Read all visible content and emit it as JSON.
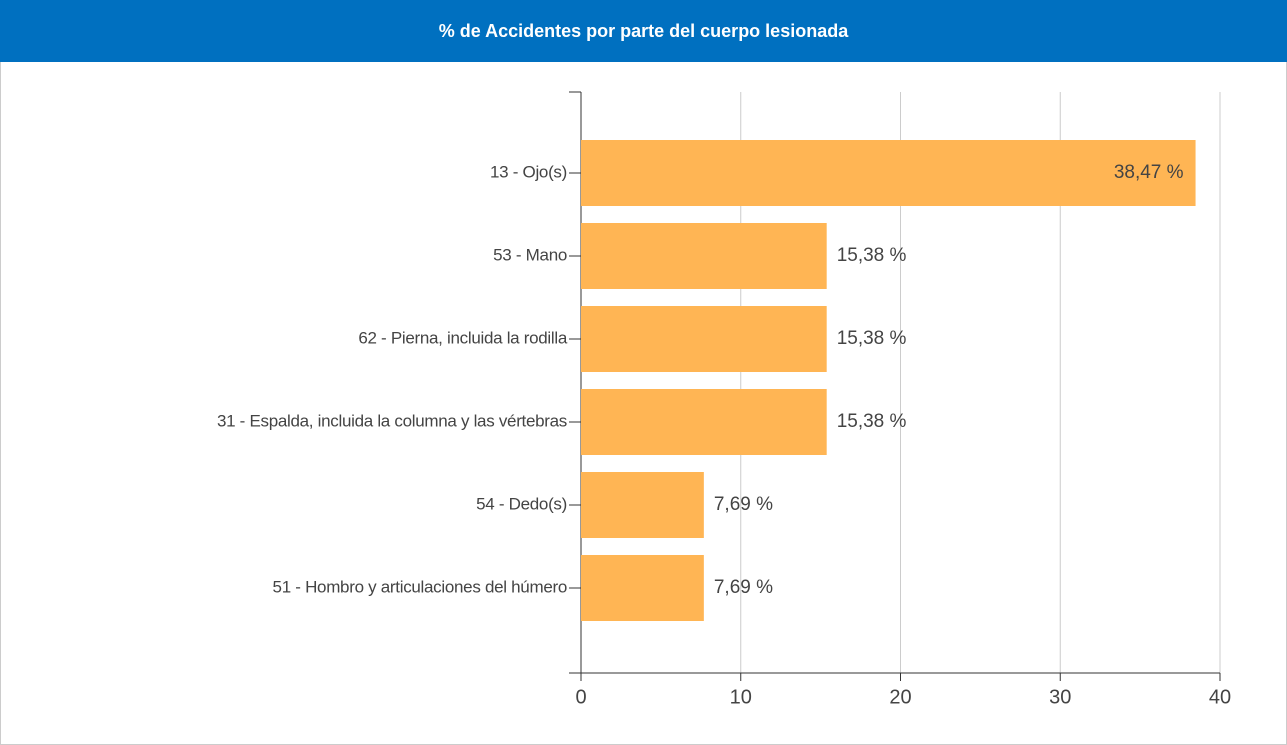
{
  "chart_data": {
    "type": "bar",
    "orientation": "horizontal",
    "title": "% de Accidentes por parte del cuerpo lesionada",
    "categories": [
      "13 - Ojo(s)",
      "53 - Mano",
      "62 - Pierna, incluida la rodilla",
      "31 - Espalda, incluida la columna y las vértebras",
      "54 - Dedo(s)",
      "51 - Hombro y articulaciones del húmero"
    ],
    "values": [
      38.47,
      15.38,
      15.38,
      15.38,
      7.69,
      7.69
    ],
    "value_labels": [
      "38,47 %",
      "15,38 %",
      "15,38 %",
      "15,38 %",
      "7,69 %",
      "7,69 %"
    ],
    "color": "#ffb554",
    "xlim": [
      0,
      40
    ],
    "xticks": [
      0,
      10,
      20,
      30,
      40
    ],
    "grid": true
  }
}
